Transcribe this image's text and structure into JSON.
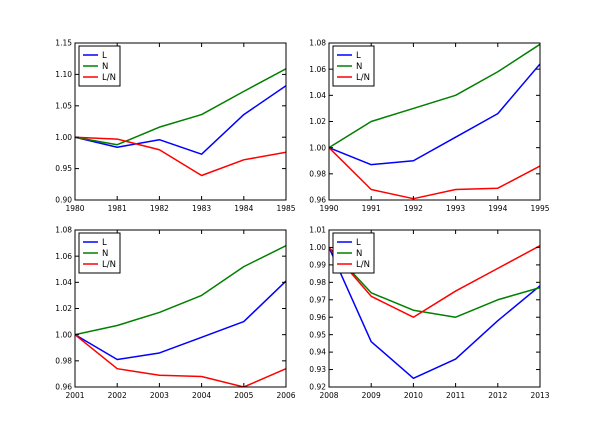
{
  "series_colors": {
    "L": "#0000ff",
    "N": "#008000",
    "L/N": "#ff0000"
  },
  "chart_data": [
    {
      "type": "line",
      "x": [
        1980,
        1981,
        1982,
        1983,
        1984,
        1985
      ],
      "xticks": [
        "1980",
        "1981",
        "1982",
        "1983",
        "1984",
        "1985"
      ],
      "xlim": [
        1980,
        1985
      ],
      "ylim": [
        0.9,
        1.15
      ],
      "yticks": [
        "0.90",
        "0.95",
        "1.00",
        "1.05",
        "1.10",
        "1.15"
      ],
      "legend": "top-left",
      "grid": false,
      "series": [
        {
          "name": "L",
          "values": [
            1.0,
            0.984,
            0.996,
            0.973,
            1.036,
            1.082
          ]
        },
        {
          "name": "N",
          "values": [
            1.0,
            0.988,
            1.016,
            1.036,
            1.073,
            1.109
          ]
        },
        {
          "name": "L/N",
          "values": [
            1.0,
            0.997,
            0.98,
            0.939,
            0.964,
            0.976
          ]
        }
      ]
    },
    {
      "type": "line",
      "x": [
        1990,
        1991,
        1992,
        1993,
        1994,
        1995
      ],
      "xticks": [
        "1990",
        "1991",
        "1992",
        "1993",
        "1994",
        "1995"
      ],
      "xlim": [
        1990,
        1995
      ],
      "ylim": [
        0.96,
        1.08
      ],
      "yticks": [
        "0.96",
        "0.98",
        "1.00",
        "1.02",
        "1.04",
        "1.06",
        "1.08"
      ],
      "legend": "top-left",
      "grid": false,
      "series": [
        {
          "name": "L",
          "values": [
            1.0,
            0.987,
            0.99,
            1.008,
            1.026,
            1.064
          ]
        },
        {
          "name": "N",
          "values": [
            1.0,
            1.02,
            1.03,
            1.04,
            1.058,
            1.079
          ]
        },
        {
          "name": "L/N",
          "values": [
            1.0,
            0.968,
            0.961,
            0.968,
            0.969,
            0.986
          ]
        }
      ]
    },
    {
      "type": "line",
      "x": [
        2001,
        2002,
        2003,
        2004,
        2005,
        2006
      ],
      "xticks": [
        "2001",
        "2002",
        "2003",
        "2004",
        "2005",
        "2006"
      ],
      "xlim": [
        2001,
        2006
      ],
      "ylim": [
        0.96,
        1.08
      ],
      "yticks": [
        "0.96",
        "0.98",
        "1.00",
        "1.02",
        "1.04",
        "1.06",
        "1.08"
      ],
      "legend": "top-left",
      "grid": false,
      "series": [
        {
          "name": "L",
          "values": [
            1.0,
            0.981,
            0.986,
            0.998,
            1.01,
            1.041
          ]
        },
        {
          "name": "N",
          "values": [
            1.0,
            1.007,
            1.017,
            1.03,
            1.052,
            1.068
          ]
        },
        {
          "name": "L/N",
          "values": [
            1.0,
            0.974,
            0.969,
            0.968,
            0.96,
            0.974
          ]
        }
      ]
    },
    {
      "type": "line",
      "x": [
        2008,
        2009,
        2010,
        2011,
        2012,
        2013
      ],
      "xticks": [
        "2008",
        "2009",
        "2010",
        "2011",
        "2012",
        "2013"
      ],
      "xlim": [
        2008,
        2013
      ],
      "ylim": [
        0.92,
        1.01
      ],
      "yticks": [
        "0.92",
        "0.93",
        "0.94",
        "0.95",
        "0.96",
        "0.97",
        "0.98",
        "0.99",
        "1.00",
        "1.01"
      ],
      "legend": "top-left",
      "grid": false,
      "series": [
        {
          "name": "L",
          "values": [
            1.0,
            0.946,
            0.925,
            0.936,
            0.958,
            0.978
          ]
        },
        {
          "name": "N",
          "values": [
            1.0,
            0.974,
            0.964,
            0.96,
            0.97,
            0.977
          ]
        },
        {
          "name": "L/N",
          "values": [
            1.0,
            0.972,
            0.96,
            0.975,
            0.988,
            1.001
          ]
        }
      ]
    }
  ]
}
